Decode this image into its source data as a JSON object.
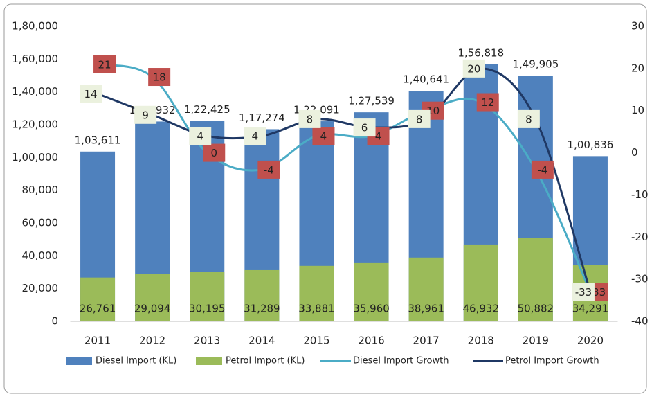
{
  "chart_data": {
    "type": "bar-line",
    "categories": [
      "2011",
      "2012",
      "2013",
      "2014",
      "2015",
      "2016",
      "2017",
      "2018",
      "2019",
      "2020"
    ],
    "series": [
      {
        "name": "Diesel Import (KL)",
        "kind": "bar",
        "color": "#4f81bd",
        "values": [
          103611,
          121932,
          122425,
          117274,
          122091,
          127539,
          140641,
          156818,
          149905,
          100836
        ],
        "value_labels": [
          "1,03,611",
          "1,21,932",
          "1,22,425",
          "1,17,274",
          "1,22,091",
          "1,27,539",
          "1,40,641",
          "1,56,818",
          "1,49,905",
          "1,00,836"
        ]
      },
      {
        "name": "Petrol Import (KL)",
        "kind": "bar",
        "color": "#9bbb59",
        "values": [
          26761,
          29094,
          30195,
          31289,
          33881,
          35960,
          38961,
          46932,
          50882,
          34291
        ],
        "value_labels": [
          "26,761",
          "29,094",
          "30,195",
          "31,289",
          "33,881",
          "35,960",
          "38,961",
          "46,932",
          "50,882",
          "34,291"
        ]
      },
      {
        "name": "Diesel Import Growth",
        "kind": "line",
        "axis": "y2",
        "color": "#4bacc6",
        "label_box_color": "#c0504d",
        "values": [
          21,
          18,
          0,
          -4,
          4,
          4,
          10,
          12,
          -4,
          -33
        ]
      },
      {
        "name": "Petrol Import Growth",
        "kind": "line",
        "axis": "y2",
        "color": "#1f3864",
        "label_box_color": "#ebf1de",
        "values": [
          14,
          9,
          4,
          4,
          8,
          6,
          8,
          20,
          8,
          -33
        ]
      }
    ],
    "ylim": [
      0,
      180000
    ],
    "yticks": [
      0,
      {
        "value": 20000,
        "label": "20,000"
      },
      {
        "value": 40000,
        "label": "40,000"
      },
      {
        "value": 60000,
        "label": "60,000"
      },
      {
        "value": 80000,
        "label": "80,000"
      },
      {
        "value": 100000,
        "label": "1,00,000"
      },
      {
        "value": 120000,
        "label": "1,20,000"
      },
      {
        "value": 140000,
        "label": "1,40,000"
      },
      {
        "value": 160000,
        "label": "1,60,000"
      },
      {
        "value": 180000,
        "label": "1,80,000"
      }
    ],
    "y2lim": [
      -40,
      30
    ],
    "y2ticks": [
      -40,
      -30,
      -20,
      -10,
      0,
      10,
      20,
      30
    ],
    "grid": false,
    "legend": "bottom"
  }
}
